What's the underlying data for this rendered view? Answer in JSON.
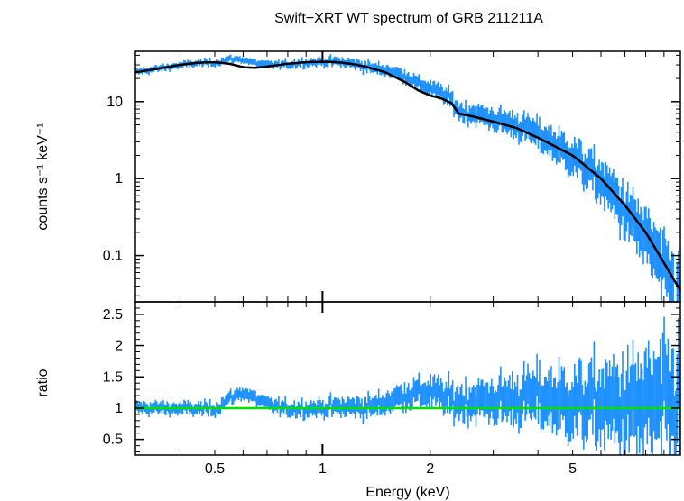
{
  "chart_data": {
    "title": "Swift−XRT WT spectrum of GRB 211211A",
    "xlabel": "Energy (keV)",
    "x_scale": "log",
    "xlim": [
      0.3,
      10
    ],
    "x_ticks": [
      {
        "value": 0.5,
        "label": "0.5"
      },
      {
        "value": 1,
        "label": "1"
      },
      {
        "value": 2,
        "label": "2"
      },
      {
        "value": 5,
        "label": "5"
      }
    ],
    "colors": {
      "data": "#1e90ff",
      "model": "#000000",
      "reference_line": "#00e000",
      "axes": "#000000"
    },
    "panels": [
      {
        "name": "spectrum",
        "type": "scatter",
        "ylabel": "counts s⁻¹ keV⁻¹",
        "y_scale": "log",
        "ylim": [
          0.025,
          45
        ],
        "y_ticks": [
          {
            "value": 0.1,
            "label": "0.1"
          },
          {
            "value": 1,
            "label": "1"
          },
          {
            "value": 10,
            "label": "10"
          }
        ],
        "model_points": [
          [
            0.3,
            24
          ],
          [
            0.35,
            27
          ],
          [
            0.4,
            30
          ],
          [
            0.45,
            32
          ],
          [
            0.5,
            32.5
          ],
          [
            0.55,
            31
          ],
          [
            0.6,
            28
          ],
          [
            0.65,
            27.5
          ],
          [
            0.7,
            28.5
          ],
          [
            0.8,
            31
          ],
          [
            0.9,
            32.5
          ],
          [
            1.0,
            33
          ],
          [
            1.1,
            32.5
          ],
          [
            1.2,
            31
          ],
          [
            1.3,
            29
          ],
          [
            1.5,
            24
          ],
          [
            1.7,
            18
          ],
          [
            1.85,
            14
          ],
          [
            2.0,
            12
          ],
          [
            2.15,
            11
          ],
          [
            2.3,
            9.5
          ],
          [
            2.4,
            7
          ],
          [
            2.6,
            6.5
          ],
          [
            3.0,
            5.5
          ],
          [
            3.5,
            4.5
          ],
          [
            4.0,
            3.4
          ],
          [
            5.0,
            2.0
          ],
          [
            6.0,
            1.0
          ],
          [
            7.0,
            0.45
          ],
          [
            8.0,
            0.2
          ],
          [
            9.0,
            0.08
          ],
          [
            10.0,
            0.035
          ]
        ]
      },
      {
        "name": "ratio",
        "type": "scatter",
        "ylabel": "ratio",
        "y_scale": "linear",
        "ylim": [
          0.25,
          2.7
        ],
        "y_ticks": [
          {
            "value": 0.5,
            "label": "0.5"
          },
          {
            "value": 1,
            "label": "1"
          },
          {
            "value": 1.5,
            "label": "1.5"
          },
          {
            "value": 2,
            "label": "2"
          },
          {
            "value": 2.5,
            "label": "2.5"
          }
        ],
        "reference_value": 1,
        "ratio_trend": [
          [
            0.3,
            1.0
          ],
          [
            0.5,
            0.98
          ],
          [
            0.55,
            1.15
          ],
          [
            0.6,
            1.25
          ],
          [
            0.7,
            1.05
          ],
          [
            0.8,
            0.98
          ],
          [
            1.0,
            1.0
          ],
          [
            1.4,
            1.02
          ],
          [
            1.7,
            1.2
          ],
          [
            2.0,
            1.25
          ],
          [
            2.3,
            1.1
          ],
          [
            3.0,
            1.1
          ],
          [
            4.0,
            1.15
          ],
          [
            5.0,
            1.05
          ],
          [
            7.0,
            1.0
          ],
          [
            10.0,
            1.0
          ]
        ]
      }
    ]
  }
}
